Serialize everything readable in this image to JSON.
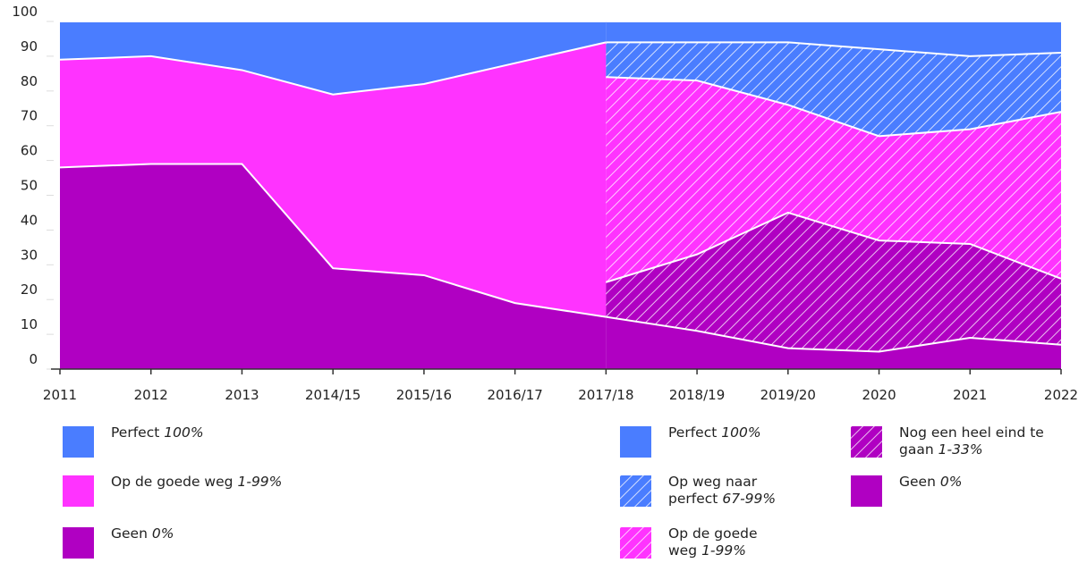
{
  "chart_data": {
    "type": "stacked-area",
    "categories": [
      "2011",
      "2012",
      "2013",
      "2014/15",
      "2015/16",
      "2016/17",
      "2017/18",
      "2018/19",
      "2019/20",
      "2020",
      "2021",
      "2022"
    ],
    "ylim": [
      0,
      100
    ],
    "yticks": [
      0,
      10,
      20,
      30,
      40,
      50,
      60,
      70,
      80,
      90,
      100
    ],
    "groups": [
      {
        "series": [
          {
            "name": "Perfect",
            "range": "100%",
            "color": "#4a7dff",
            "hatched": false,
            "values": [
              11,
              10,
              14,
              21,
              18,
              12,
              6,
              null,
              null,
              null,
              null,
              null
            ]
          },
          {
            "name": "Op de goede weg",
            "range": "1-99%",
            "color": "#ff33ff",
            "hatched": false,
            "values": [
              31,
              31,
              27,
              50,
              55,
              69,
              79,
              null,
              null,
              null,
              null,
              null
            ]
          },
          {
            "name": "Geen",
            "range": "0%",
            "color": "#b000c2",
            "hatched": false,
            "values": [
              58,
              59,
              59,
              29,
              27,
              19,
              15,
              null,
              null,
              null,
              null,
              null
            ]
          }
        ]
      },
      {
        "series": [
          {
            "name": "Perfect",
            "range": "100%",
            "color": "#4a7dff",
            "hatched": false,
            "values": [
              null,
              null,
              null,
              null,
              null,
              null,
              6,
              6,
              6,
              8,
              10,
              9
            ]
          },
          {
            "name": "Op weg naar perfect",
            "range": "67-99%",
            "color": "#4a7dff",
            "hatched": true,
            "values": [
              null,
              null,
              null,
              null,
              null,
              null,
              10,
              11,
              18,
              25,
              21,
              17
            ]
          },
          {
            "name": "Op de goede weg",
            "range": "1-99%",
            "color": "#ff33ff",
            "hatched": true,
            "values": [
              null,
              null,
              null,
              null,
              null,
              null,
              59,
              50,
              31,
              30,
              33,
              48
            ]
          },
          {
            "name": "Nog een heel eind te gaan",
            "range": "1-33%",
            "color": "#b000c2",
            "hatched": true,
            "values": [
              null,
              null,
              null,
              null,
              null,
              null,
              10,
              22,
              39,
              32,
              27,
              19
            ]
          },
          {
            "name": "Geen",
            "range": "0%",
            "color": "#b000c2",
            "hatched": false,
            "values": [
              null,
              null,
              null,
              null,
              null,
              null,
              15,
              11,
              6,
              5,
              9,
              7
            ]
          }
        ]
      }
    ]
  }
}
